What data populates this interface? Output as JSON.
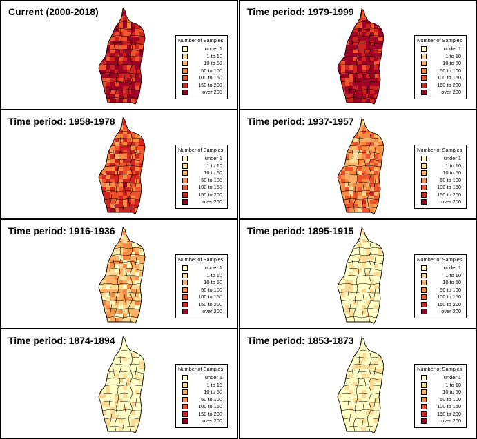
{
  "legend": {
    "title": "Number of Samples",
    "items": [
      {
        "label": "under   1",
        "color": "#ffffc6"
      },
      {
        "label": "1 to  10",
        "color": "#fedb94"
      },
      {
        "label": "10 to  50",
        "color": "#fdb063"
      },
      {
        "label": "50 to 100",
        "color": "#fb8a43"
      },
      {
        "label": "100 to 150",
        "color": "#f1542d"
      },
      {
        "label": "150 to 200",
        "color": "#d02421"
      },
      {
        "label": "over 200",
        "color": "#a10026"
      }
    ]
  },
  "panels": [
    {
      "title": "Current (2000-2018)",
      "intensity": 0.82
    },
    {
      "title": "Time period: 1979-1999",
      "intensity": 0.9
    },
    {
      "title": "Time period: 1958-1978",
      "intensity": 0.62
    },
    {
      "title": "Time period: 1937-1957",
      "intensity": 0.45
    },
    {
      "title": "Time period: 1916-1936",
      "intensity": 0.25
    },
    {
      "title": "Time period: 1895-1915",
      "intensity": 0.08
    },
    {
      "title": "Time period: 1874-1894",
      "intensity": 0.06
    },
    {
      "title": "Time period: 1853-1873",
      "intensity": 0.05
    }
  ]
}
